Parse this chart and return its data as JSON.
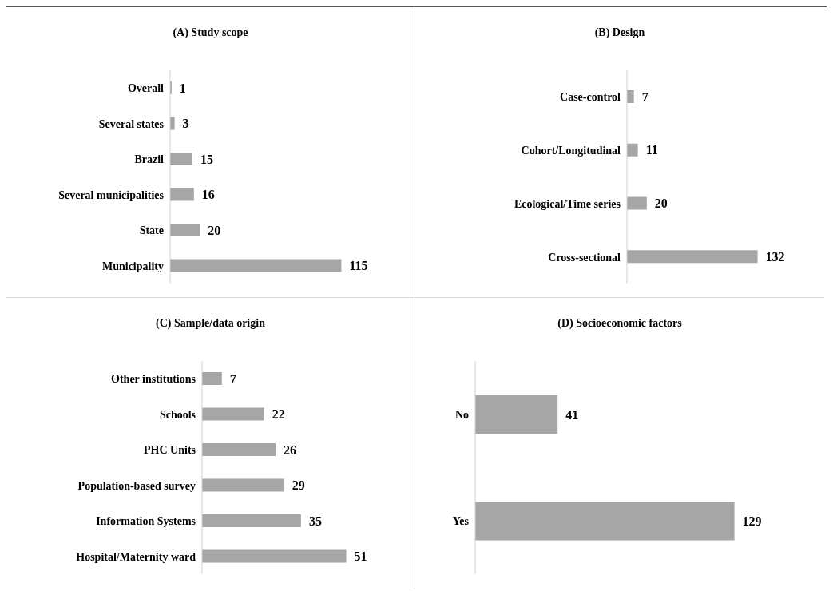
{
  "chart_data": [
    {
      "type": "bar",
      "orientation": "horizontal",
      "title": "(A) Study scope",
      "categories": [
        "Overall",
        "Several states",
        "Brazil",
        "Several municipalities",
        "State",
        "Municipality"
      ],
      "values": [
        1,
        3,
        15,
        16,
        20,
        115
      ],
      "color": "#a6a6a6",
      "data_labels": true,
      "tick_labels": "y"
    },
    {
      "type": "bar",
      "orientation": "horizontal",
      "title": "(B) Design",
      "categories": [
        "Case-control",
        "Cohort/Longitudinal",
        "Ecological/Time series",
        "Cross-sectional"
      ],
      "values": [
        7,
        11,
        20,
        132
      ],
      "color": "#a6a6a6",
      "data_labels": true,
      "tick_labels": "y"
    },
    {
      "type": "bar",
      "orientation": "horizontal",
      "title": "(C) Sample/data origin",
      "categories": [
        "Other institutions",
        "Schools",
        "PHC Units",
        "Population-based survey",
        "Information Systems",
        "Hospital/Maternity ward"
      ],
      "values": [
        7,
        22,
        26,
        29,
        35,
        51
      ],
      "color": "#a6a6a6",
      "data_labels": true,
      "tick_labels": "y"
    },
    {
      "type": "bar",
      "orientation": "horizontal",
      "title": "(D) Socioeconomic factors",
      "categories": [
        "No",
        "Yes"
      ],
      "values": [
        41,
        129
      ],
      "color": "#a6a6a6",
      "data_labels": true,
      "tick_labels": "y"
    }
  ]
}
